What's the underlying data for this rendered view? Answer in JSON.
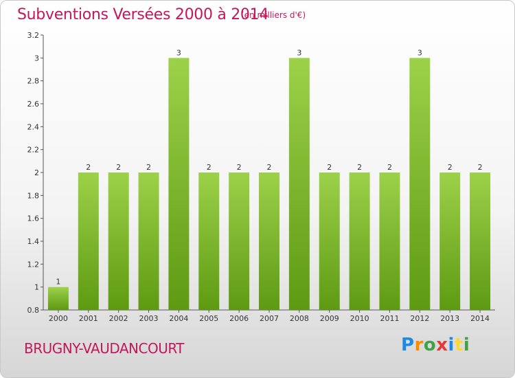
{
  "header": {
    "title": "Subventions Versées 2000 à 2014",
    "unit": "(en milliers d'€)"
  },
  "footer": {
    "place": "BRUGNY-VAUDANCOURT",
    "logo_letters": [
      "P",
      "r",
      "o",
      "x",
      "i",
      "t",
      "i"
    ],
    "logo_colors": [
      "#1e88e5",
      "#fb8c00",
      "#43a047",
      "#e53935",
      "#1e88e5",
      "#fdd835",
      "#43a047"
    ]
  },
  "chart_data": {
    "type": "bar",
    "categories": [
      "2000",
      "2001",
      "2002",
      "2003",
      "2004",
      "2005",
      "2006",
      "2007",
      "2008",
      "2009",
      "2010",
      "2011",
      "2012",
      "2013",
      "2014"
    ],
    "values": [
      1,
      2,
      2,
      2,
      3,
      2,
      2,
      2,
      3,
      2,
      2,
      2,
      3,
      2,
      2
    ],
    "data_labels": [
      "1",
      "2",
      "2",
      "2",
      "3",
      "2",
      "2",
      "2",
      "3",
      "2",
      "2",
      "2",
      "3",
      "2",
      "2"
    ],
    "title": "Subventions Versées 2000 à 2014",
    "ylabel": "",
    "xlabel": "",
    "ylim": [
      0.8,
      3.2
    ],
    "yticks": [
      "0.8",
      "1",
      "1.2",
      "1.4",
      "1.6",
      "1.8",
      "2",
      "2.2",
      "2.4",
      "2.6",
      "2.8",
      "3",
      "3.2"
    ],
    "grid": false,
    "bar_color": "#8cc63f"
  }
}
